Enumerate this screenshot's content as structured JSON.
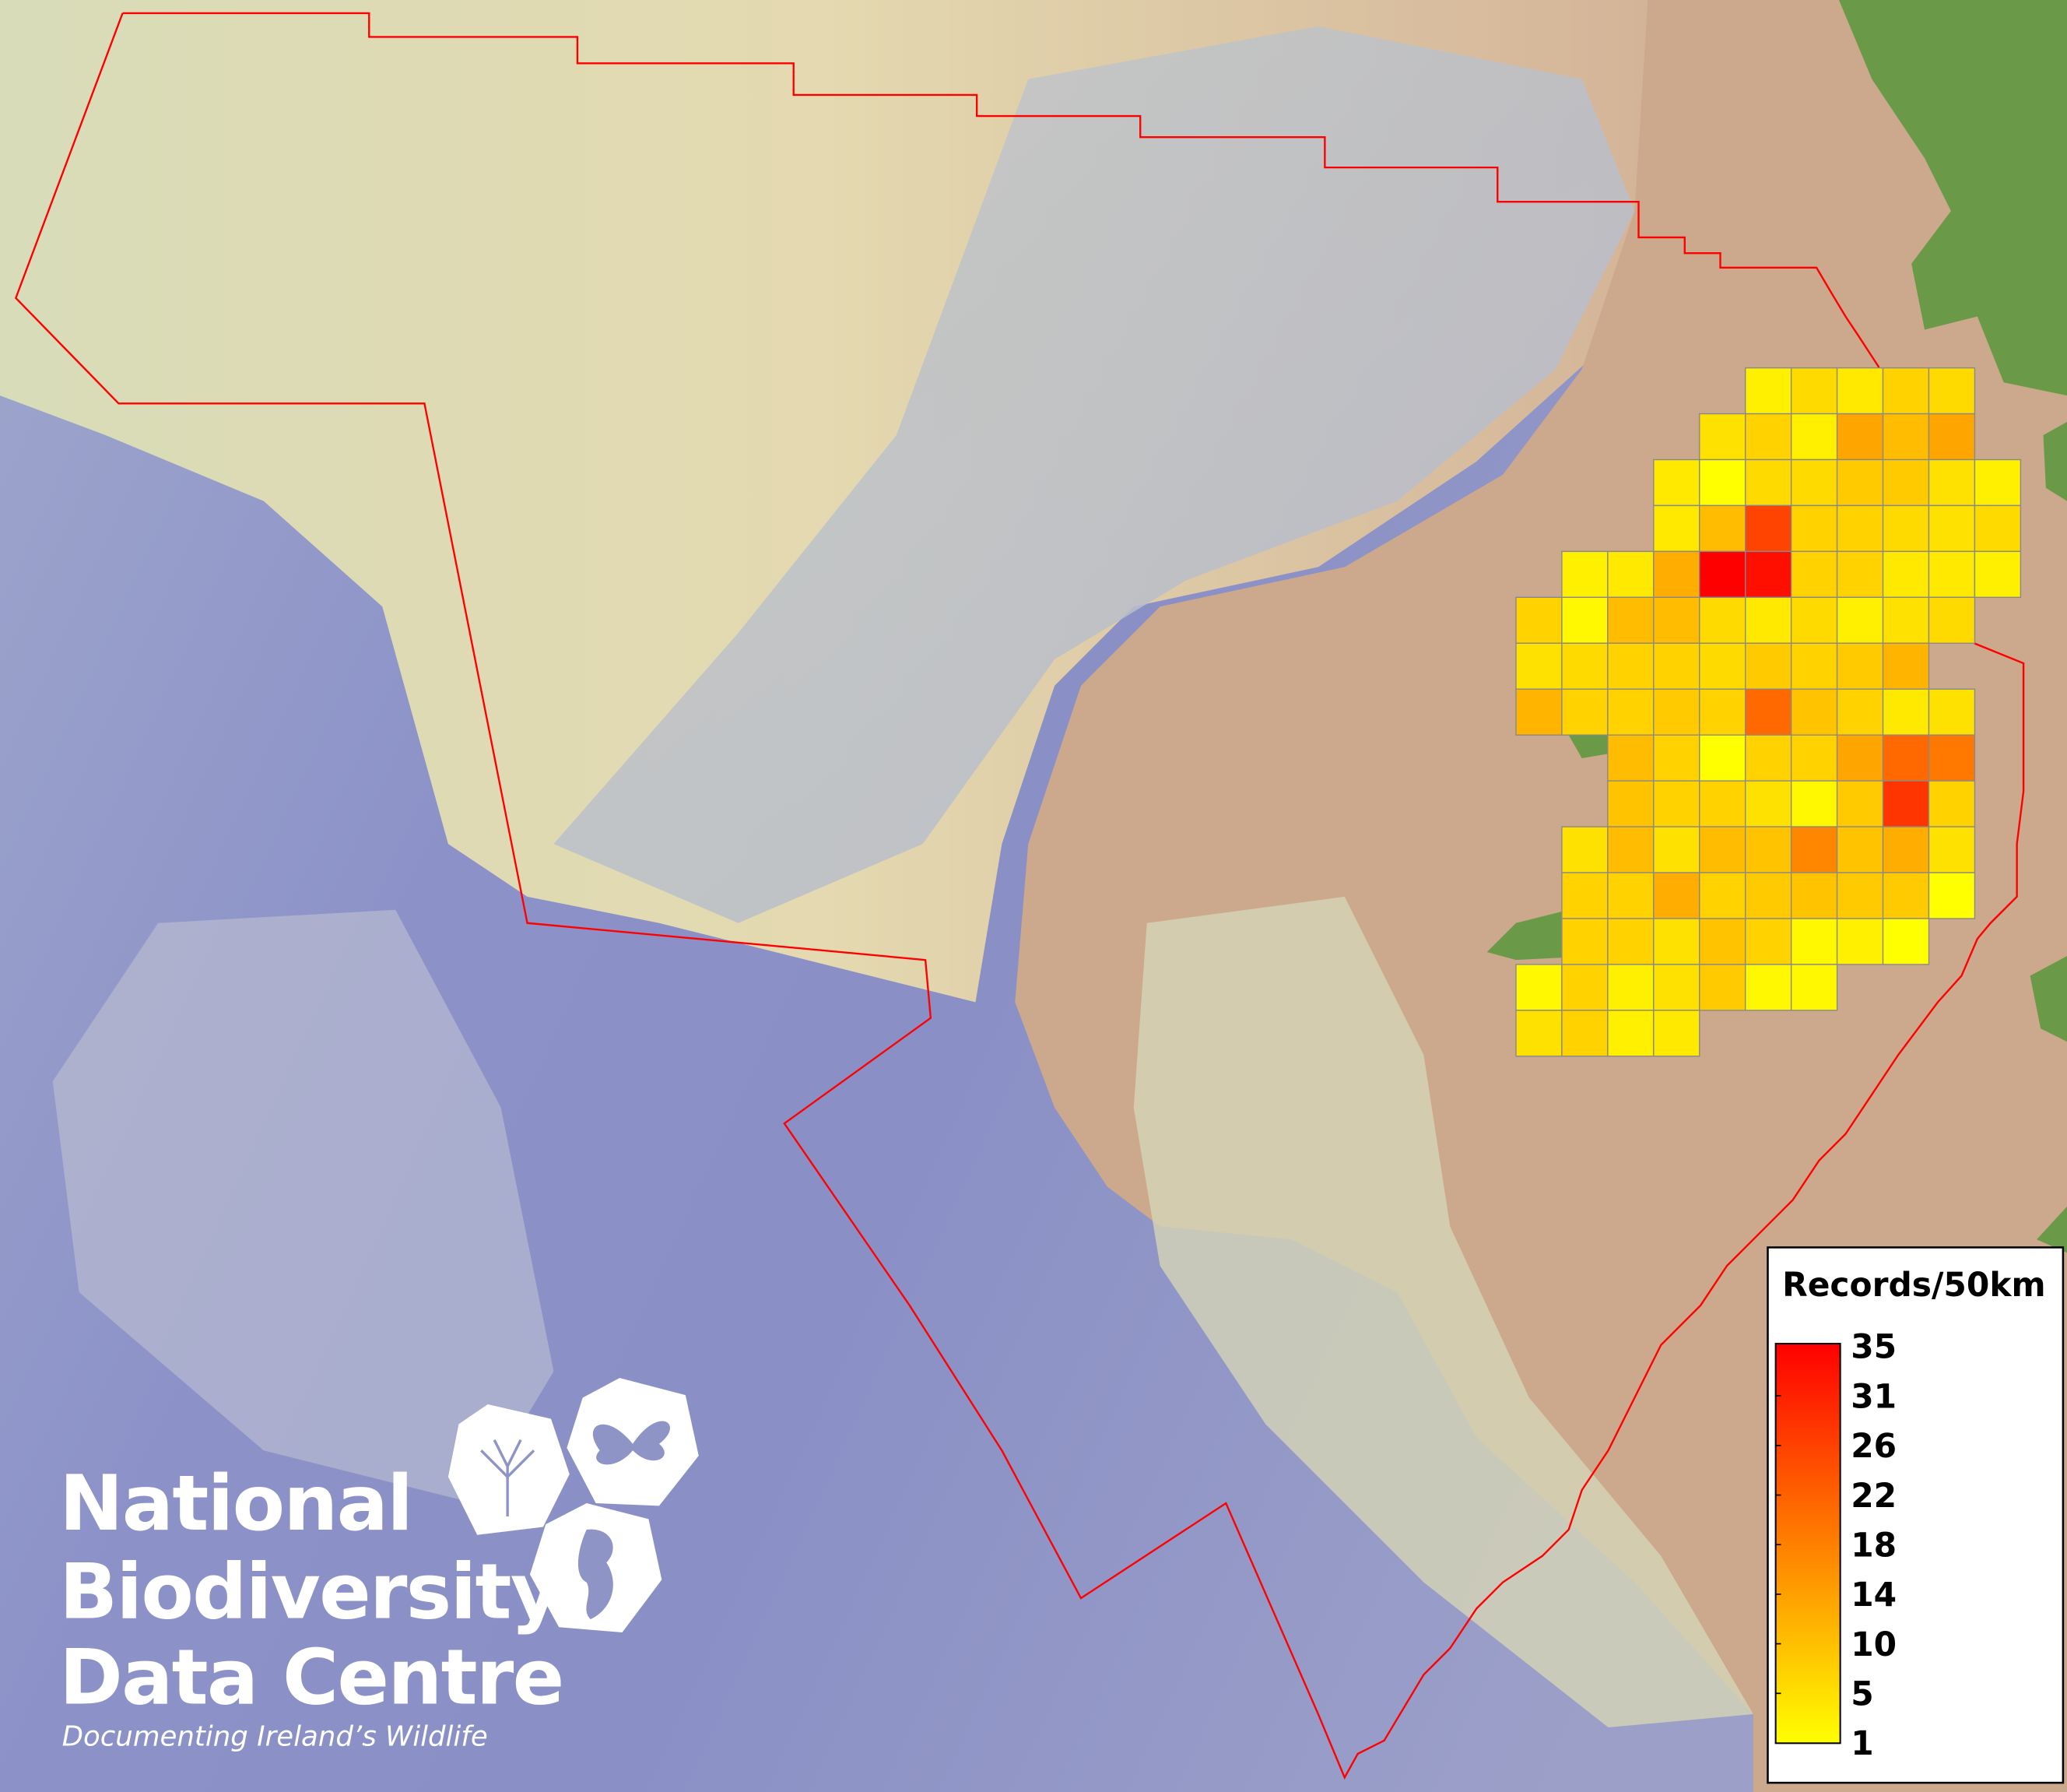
{
  "legend": {
    "title": "Records/50km",
    "ticks": [
      "35",
      "31",
      "26",
      "22",
      "18",
      "14",
      "10",
      "5",
      "1"
    ],
    "min": 1,
    "max": 35,
    "color_low": "#ffff00",
    "color_high": "#ff0000"
  },
  "logo": {
    "line1": "National",
    "line2": "Biodiversity",
    "line3": "Data Centre",
    "tagline": "Documenting Ireland’s Wildlife"
  },
  "colors": {
    "boundary": "#ff0000",
    "sea_deep": "#8a8fc8",
    "shelf": "#c9d0c4",
    "land": "#cca88c",
    "vegetation": "#6a9a48",
    "grid_line": "#888888"
  },
  "grid": {
    "cell_km": 50,
    "rows": [
      {
        "start": 5,
        "values": [
          3,
          6,
          4,
          7,
          6
        ]
      },
      {
        "start": 4,
        "values": [
          5,
          7,
          3,
          13,
          10,
          13
        ]
      },
      {
        "start": 3,
        "values": [
          4,
          1,
          6,
          6,
          8,
          8,
          5,
          3
        ]
      },
      {
        "start": 3,
        "values": [
          4,
          10,
          26,
          7,
          7,
          6,
          5,
          6
        ]
      },
      {
        "start": 1,
        "values": [
          3,
          4,
          12,
          35,
          33,
          7,
          7,
          4,
          4,
          3
        ]
      },
      {
        "start": 0,
        "values": [
          7,
          2,
          10,
          10,
          6,
          4,
          6,
          3,
          5,
          6
        ]
      },
      {
        "start": 0,
        "values": [
          5,
          6,
          7,
          7,
          6,
          8,
          7,
          8,
          11
        ]
      },
      {
        "start": 0,
        "values": [
          11,
          7,
          7,
          8,
          7,
          21,
          9,
          7,
          4,
          5
        ]
      },
      {
        "start": 2,
        "values": [
          10,
          7,
          1,
          7,
          7,
          13,
          21,
          19
        ]
      },
      {
        "start": 2,
        "values": [
          9,
          7,
          7,
          5,
          2,
          8,
          28,
          7
        ]
      },
      {
        "start": 1,
        "values": [
          5,
          10,
          5,
          10,
          9,
          17,
          9,
          12,
          5
        ]
      },
      {
        "start": 1,
        "values": [
          7,
          7,
          12,
          7,
          8,
          9,
          8,
          8,
          1
        ]
      },
      {
        "start": 1,
        "values": [
          7,
          7,
          5,
          9,
          7,
          2,
          3,
          1
        ]
      },
      {
        "start": 0,
        "values": [
          2,
          7,
          3,
          5,
          8,
          2,
          2
        ]
      },
      {
        "start": 0,
        "values": [
          5,
          7,
          3,
          4
        ]
      }
    ]
  }
}
